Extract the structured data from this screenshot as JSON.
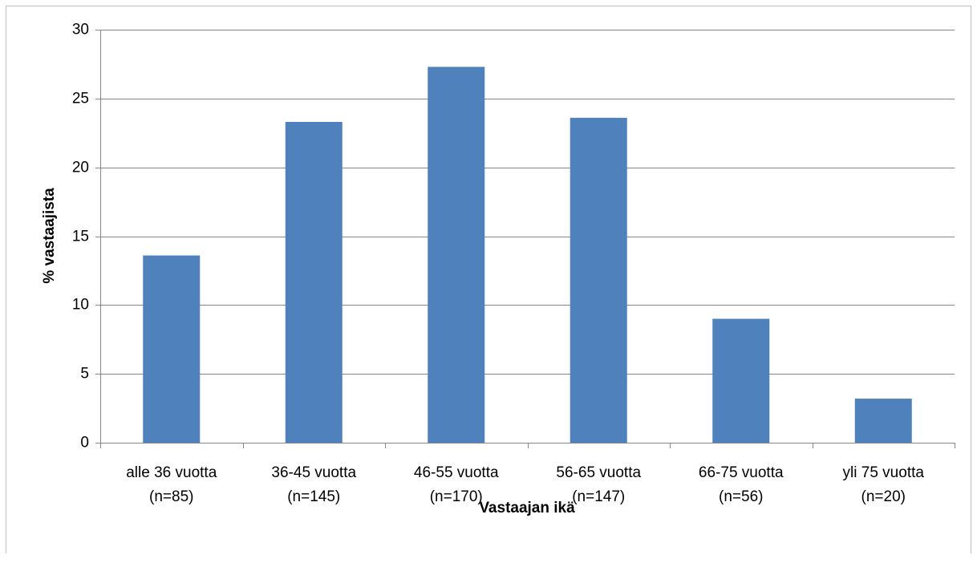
{
  "chart_data": {
    "type": "bar",
    "y_label": "% vastaajista",
    "x_label": "Vastaajan ikä",
    "categories": [
      [
        "alle 36 vuotta",
        "(n=85)"
      ],
      [
        "36-45  vuotta",
        "(n=145)"
      ],
      [
        "46-55 vuotta",
        "(n=170)"
      ],
      [
        "56-65 vuotta",
        "(n=147)"
      ],
      [
        "66-75 vuotta",
        "(n=56)"
      ],
      [
        "yli 75 vuotta",
        "(n=20)"
      ]
    ],
    "values": [
      13.6,
      23.3,
      27.3,
      23.6,
      9.0,
      3.2
    ],
    "color": "#4f81bd",
    "ylim": [
      0,
      30
    ],
    "yticks": [
      0,
      5,
      10,
      15,
      20,
      25,
      30
    ],
    "grid": true
  }
}
